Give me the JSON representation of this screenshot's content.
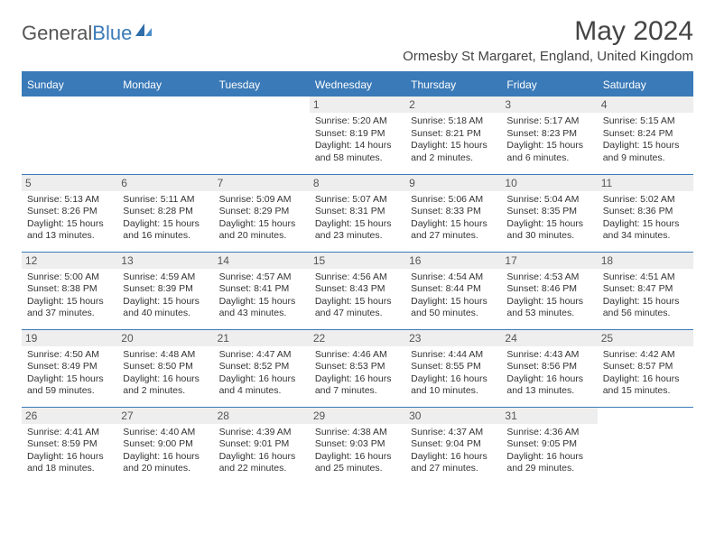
{
  "logo": {
    "part1": "General",
    "part2": "Blue"
  },
  "title": "May 2024",
  "location": "Ormesby St Margaret, England, United Kingdom",
  "colors": {
    "header_bg": "#3a7ab8",
    "header_text": "#ffffff",
    "rule": "#3a7ab8",
    "daynum_bg": "#eeeeee",
    "body_text": "#333333",
    "title_color": "#444444"
  },
  "fonts": {
    "title_size": 30,
    "location_size": 15,
    "dayheader_size": 12,
    "cell_size": 10.5
  },
  "day_headers": [
    "Sunday",
    "Monday",
    "Tuesday",
    "Wednesday",
    "Thursday",
    "Friday",
    "Saturday"
  ],
  "weeks": [
    [
      null,
      null,
      null,
      {
        "n": "1",
        "sr": "5:20 AM",
        "ss": "8:19 PM",
        "dl": "14 hours and 58 minutes."
      },
      {
        "n": "2",
        "sr": "5:18 AM",
        "ss": "8:21 PM",
        "dl": "15 hours and 2 minutes."
      },
      {
        "n": "3",
        "sr": "5:17 AM",
        "ss": "8:23 PM",
        "dl": "15 hours and 6 minutes."
      },
      {
        "n": "4",
        "sr": "5:15 AM",
        "ss": "8:24 PM",
        "dl": "15 hours and 9 minutes."
      }
    ],
    [
      {
        "n": "5",
        "sr": "5:13 AM",
        "ss": "8:26 PM",
        "dl": "15 hours and 13 minutes."
      },
      {
        "n": "6",
        "sr": "5:11 AM",
        "ss": "8:28 PM",
        "dl": "15 hours and 16 minutes."
      },
      {
        "n": "7",
        "sr": "5:09 AM",
        "ss": "8:29 PM",
        "dl": "15 hours and 20 minutes."
      },
      {
        "n": "8",
        "sr": "5:07 AM",
        "ss": "8:31 PM",
        "dl": "15 hours and 23 minutes."
      },
      {
        "n": "9",
        "sr": "5:06 AM",
        "ss": "8:33 PM",
        "dl": "15 hours and 27 minutes."
      },
      {
        "n": "10",
        "sr": "5:04 AM",
        "ss": "8:35 PM",
        "dl": "15 hours and 30 minutes."
      },
      {
        "n": "11",
        "sr": "5:02 AM",
        "ss": "8:36 PM",
        "dl": "15 hours and 34 minutes."
      }
    ],
    [
      {
        "n": "12",
        "sr": "5:00 AM",
        "ss": "8:38 PM",
        "dl": "15 hours and 37 minutes."
      },
      {
        "n": "13",
        "sr": "4:59 AM",
        "ss": "8:39 PM",
        "dl": "15 hours and 40 minutes."
      },
      {
        "n": "14",
        "sr": "4:57 AM",
        "ss": "8:41 PM",
        "dl": "15 hours and 43 minutes."
      },
      {
        "n": "15",
        "sr": "4:56 AM",
        "ss": "8:43 PM",
        "dl": "15 hours and 47 minutes."
      },
      {
        "n": "16",
        "sr": "4:54 AM",
        "ss": "8:44 PM",
        "dl": "15 hours and 50 minutes."
      },
      {
        "n": "17",
        "sr": "4:53 AM",
        "ss": "8:46 PM",
        "dl": "15 hours and 53 minutes."
      },
      {
        "n": "18",
        "sr": "4:51 AM",
        "ss": "8:47 PM",
        "dl": "15 hours and 56 minutes."
      }
    ],
    [
      {
        "n": "19",
        "sr": "4:50 AM",
        "ss": "8:49 PM",
        "dl": "15 hours and 59 minutes."
      },
      {
        "n": "20",
        "sr": "4:48 AM",
        "ss": "8:50 PM",
        "dl": "16 hours and 2 minutes."
      },
      {
        "n": "21",
        "sr": "4:47 AM",
        "ss": "8:52 PM",
        "dl": "16 hours and 4 minutes."
      },
      {
        "n": "22",
        "sr": "4:46 AM",
        "ss": "8:53 PM",
        "dl": "16 hours and 7 minutes."
      },
      {
        "n": "23",
        "sr": "4:44 AM",
        "ss": "8:55 PM",
        "dl": "16 hours and 10 minutes."
      },
      {
        "n": "24",
        "sr": "4:43 AM",
        "ss": "8:56 PM",
        "dl": "16 hours and 13 minutes."
      },
      {
        "n": "25",
        "sr": "4:42 AM",
        "ss": "8:57 PM",
        "dl": "16 hours and 15 minutes."
      }
    ],
    [
      {
        "n": "26",
        "sr": "4:41 AM",
        "ss": "8:59 PM",
        "dl": "16 hours and 18 minutes."
      },
      {
        "n": "27",
        "sr": "4:40 AM",
        "ss": "9:00 PM",
        "dl": "16 hours and 20 minutes."
      },
      {
        "n": "28",
        "sr": "4:39 AM",
        "ss": "9:01 PM",
        "dl": "16 hours and 22 minutes."
      },
      {
        "n": "29",
        "sr": "4:38 AM",
        "ss": "9:03 PM",
        "dl": "16 hours and 25 minutes."
      },
      {
        "n": "30",
        "sr": "4:37 AM",
        "ss": "9:04 PM",
        "dl": "16 hours and 27 minutes."
      },
      {
        "n": "31",
        "sr": "4:36 AM",
        "ss": "9:05 PM",
        "dl": "16 hours and 29 minutes."
      },
      null
    ]
  ],
  "labels": {
    "sunrise": "Sunrise:",
    "sunset": "Sunset:",
    "daylight": "Daylight:"
  }
}
